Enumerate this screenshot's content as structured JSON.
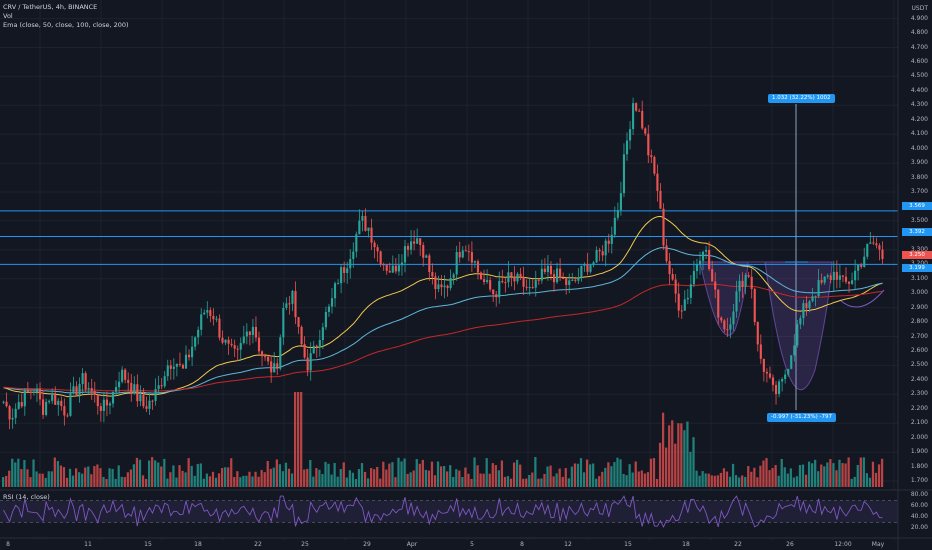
{
  "chart": {
    "symbol_line": "CRV / TetherUS, 4h, BINANCE",
    "volume_line": "Vol",
    "ema_line": "Ema (close, 50, close, 100, close, 200)",
    "currency": "USDT",
    "rsi_line": "RSI (14, close)"
  },
  "price_axis": [
    "4.900",
    "4.800",
    "4.700",
    "4.600",
    "4.500",
    "4.400",
    "4.300",
    "4.200",
    "4.100",
    "4.000",
    "3.900",
    "3.800",
    "3.700",
    "3.600",
    "3.500",
    "3.400",
    "3.300",
    "3.200",
    "3.100",
    "3.000",
    "2.900",
    "2.800",
    "2.700",
    "2.600",
    "2.500",
    "2.400",
    "2.300",
    "2.200",
    "2.100",
    "2.000",
    "1.900",
    "1.800",
    "1.700"
  ],
  "rsi_axis": [
    "80.00",
    "60.00",
    "40.00",
    "20.00"
  ],
  "time_axis": [
    "8",
    "11",
    "15",
    "18",
    "22",
    "25",
    "29",
    "Apr",
    "5",
    "8",
    "12",
    "15",
    "18",
    "22",
    "26",
    "12:00",
    "May"
  ],
  "price_tags": {
    "resistance_top": "3.569",
    "resistance_mid": "3.392",
    "current_price": "3.250",
    "support": "3.199"
  },
  "measurements": {
    "up": "1.032 (32.22%) 1002",
    "down": "-0.997 (-31.23%) -797"
  },
  "colors": {
    "background": "#131722",
    "bull": "#26a69a",
    "bear": "#ef5350",
    "ema50": "#f2c94c",
    "ema100": "#5fb6d9",
    "ema200": "#c62828",
    "level": "#2196f3",
    "pattern": "#7e57c2",
    "rsi": "#7e57c2"
  },
  "chart_data": {
    "type": "candlestick",
    "ema_periods": [
      50,
      100,
      200
    ],
    "horizontal_levels": [
      3.569,
      3.392,
      3.199
    ],
    "close_path": [
      2.25,
      2.15,
      2.25,
      2.3,
      2.35,
      2.2,
      2.3,
      2.25,
      2.18,
      2.3,
      2.4,
      2.35,
      2.25,
      2.2,
      2.3,
      2.45,
      2.4,
      2.3,
      2.22,
      2.25,
      2.35,
      2.5,
      2.55,
      2.45,
      2.6,
      2.75,
      2.9,
      2.85,
      2.7,
      2.6,
      2.55,
      2.7,
      2.8,
      2.6,
      2.5,
      2.45,
      2.9,
      3.0,
      2.7,
      2.5,
      2.6,
      2.8,
      2.9,
      3.1,
      3.2,
      3.35,
      3.5,
      3.45,
      3.3,
      3.2,
      3.15,
      3.25,
      3.35,
      3.4,
      3.3,
      3.1,
      3.0,
      3.05,
      3.2,
      3.35,
      3.3,
      3.15,
      3.05,
      3.0,
      3.05,
      3.1,
      3.08,
      3.05,
      3.0,
      3.1,
      3.15,
      3.12,
      3.08,
      3.05,
      3.12,
      3.2,
      3.22,
      3.3,
      3.4,
      3.6,
      4.0,
      4.35,
      4.2,
      3.95,
      3.75,
      3.3,
      3.05,
      2.9,
      3.0,
      3.2,
      3.35,
      3.1,
      2.85,
      2.75,
      2.95,
      3.1,
      3.15,
      2.6,
      2.45,
      2.3,
      2.35,
      2.55,
      2.75,
      2.9,
      3.0,
      3.05,
      3.1,
      3.15,
      3.05,
      3.1,
      3.2,
      3.3,
      3.35,
      3.25
    ]
  }
}
